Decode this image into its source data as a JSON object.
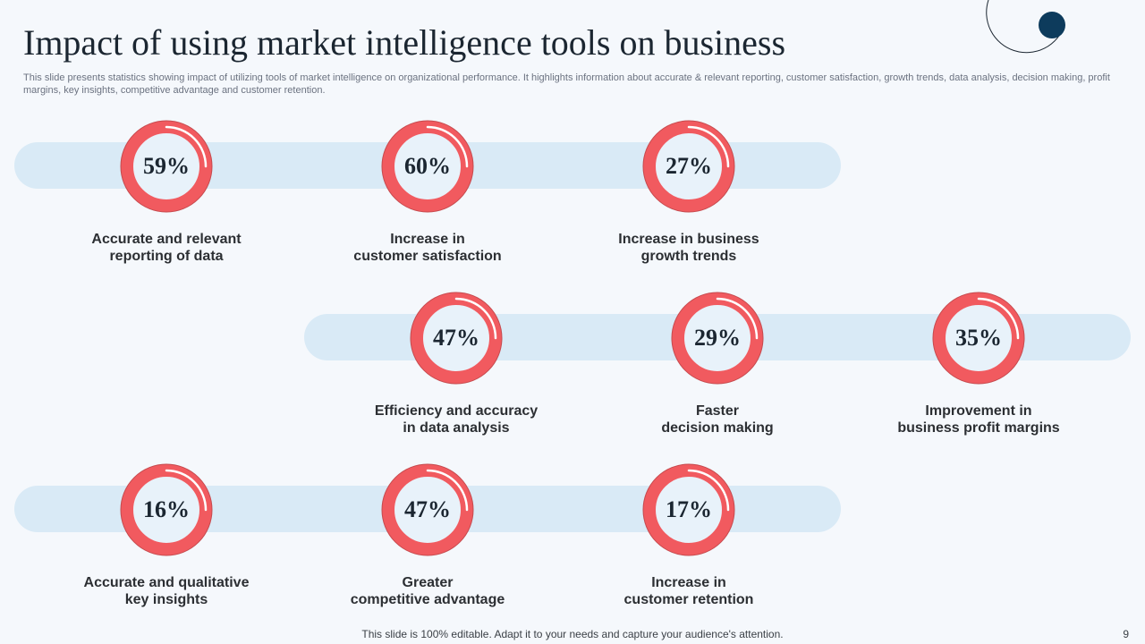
{
  "slide": {
    "title": "Impact of using market intelligence tools on business",
    "subtitle": "This slide presents statistics showing impact of utilizing tools of market intelligence on organizational performance. It highlights information about accurate & relevant reporting, customer satisfaction, growth trends, data analysis, decision making, profit margins, key insights, competitive advantage and customer retention.",
    "footer": "This slide is 100% editable. Adapt it to your needs and capture your audience's attention.",
    "page_number": "9"
  },
  "colors": {
    "ring": "#f15a5f",
    "band": "#d9eaf6",
    "accent_dark": "#0d3b5c"
  },
  "stats": [
    {
      "value": "59%",
      "line1": "Accurate and relevant",
      "line2": "reporting of data"
    },
    {
      "value": "60%",
      "line1": "Increase in",
      "line2": "customer satisfaction"
    },
    {
      "value": "27%",
      "line1": "Increase in business",
      "line2": "growth trends"
    },
    {
      "value": "47%",
      "line1": "Efficiency and accuracy",
      "line2": "in data analysis"
    },
    {
      "value": "29%",
      "line1": "Faster",
      "line2": "decision making"
    },
    {
      "value": "35%",
      "line1": "Improvement in",
      "line2": "business profit margins"
    },
    {
      "value": "16%",
      "line1": "Accurate and qualitative",
      "line2": "key insights"
    },
    {
      "value": "47%",
      "line1": "Greater",
      "line2": "competitive advantage"
    },
    {
      "value": "17%",
      "line1": "Increase in",
      "line2": "customer retention"
    }
  ]
}
